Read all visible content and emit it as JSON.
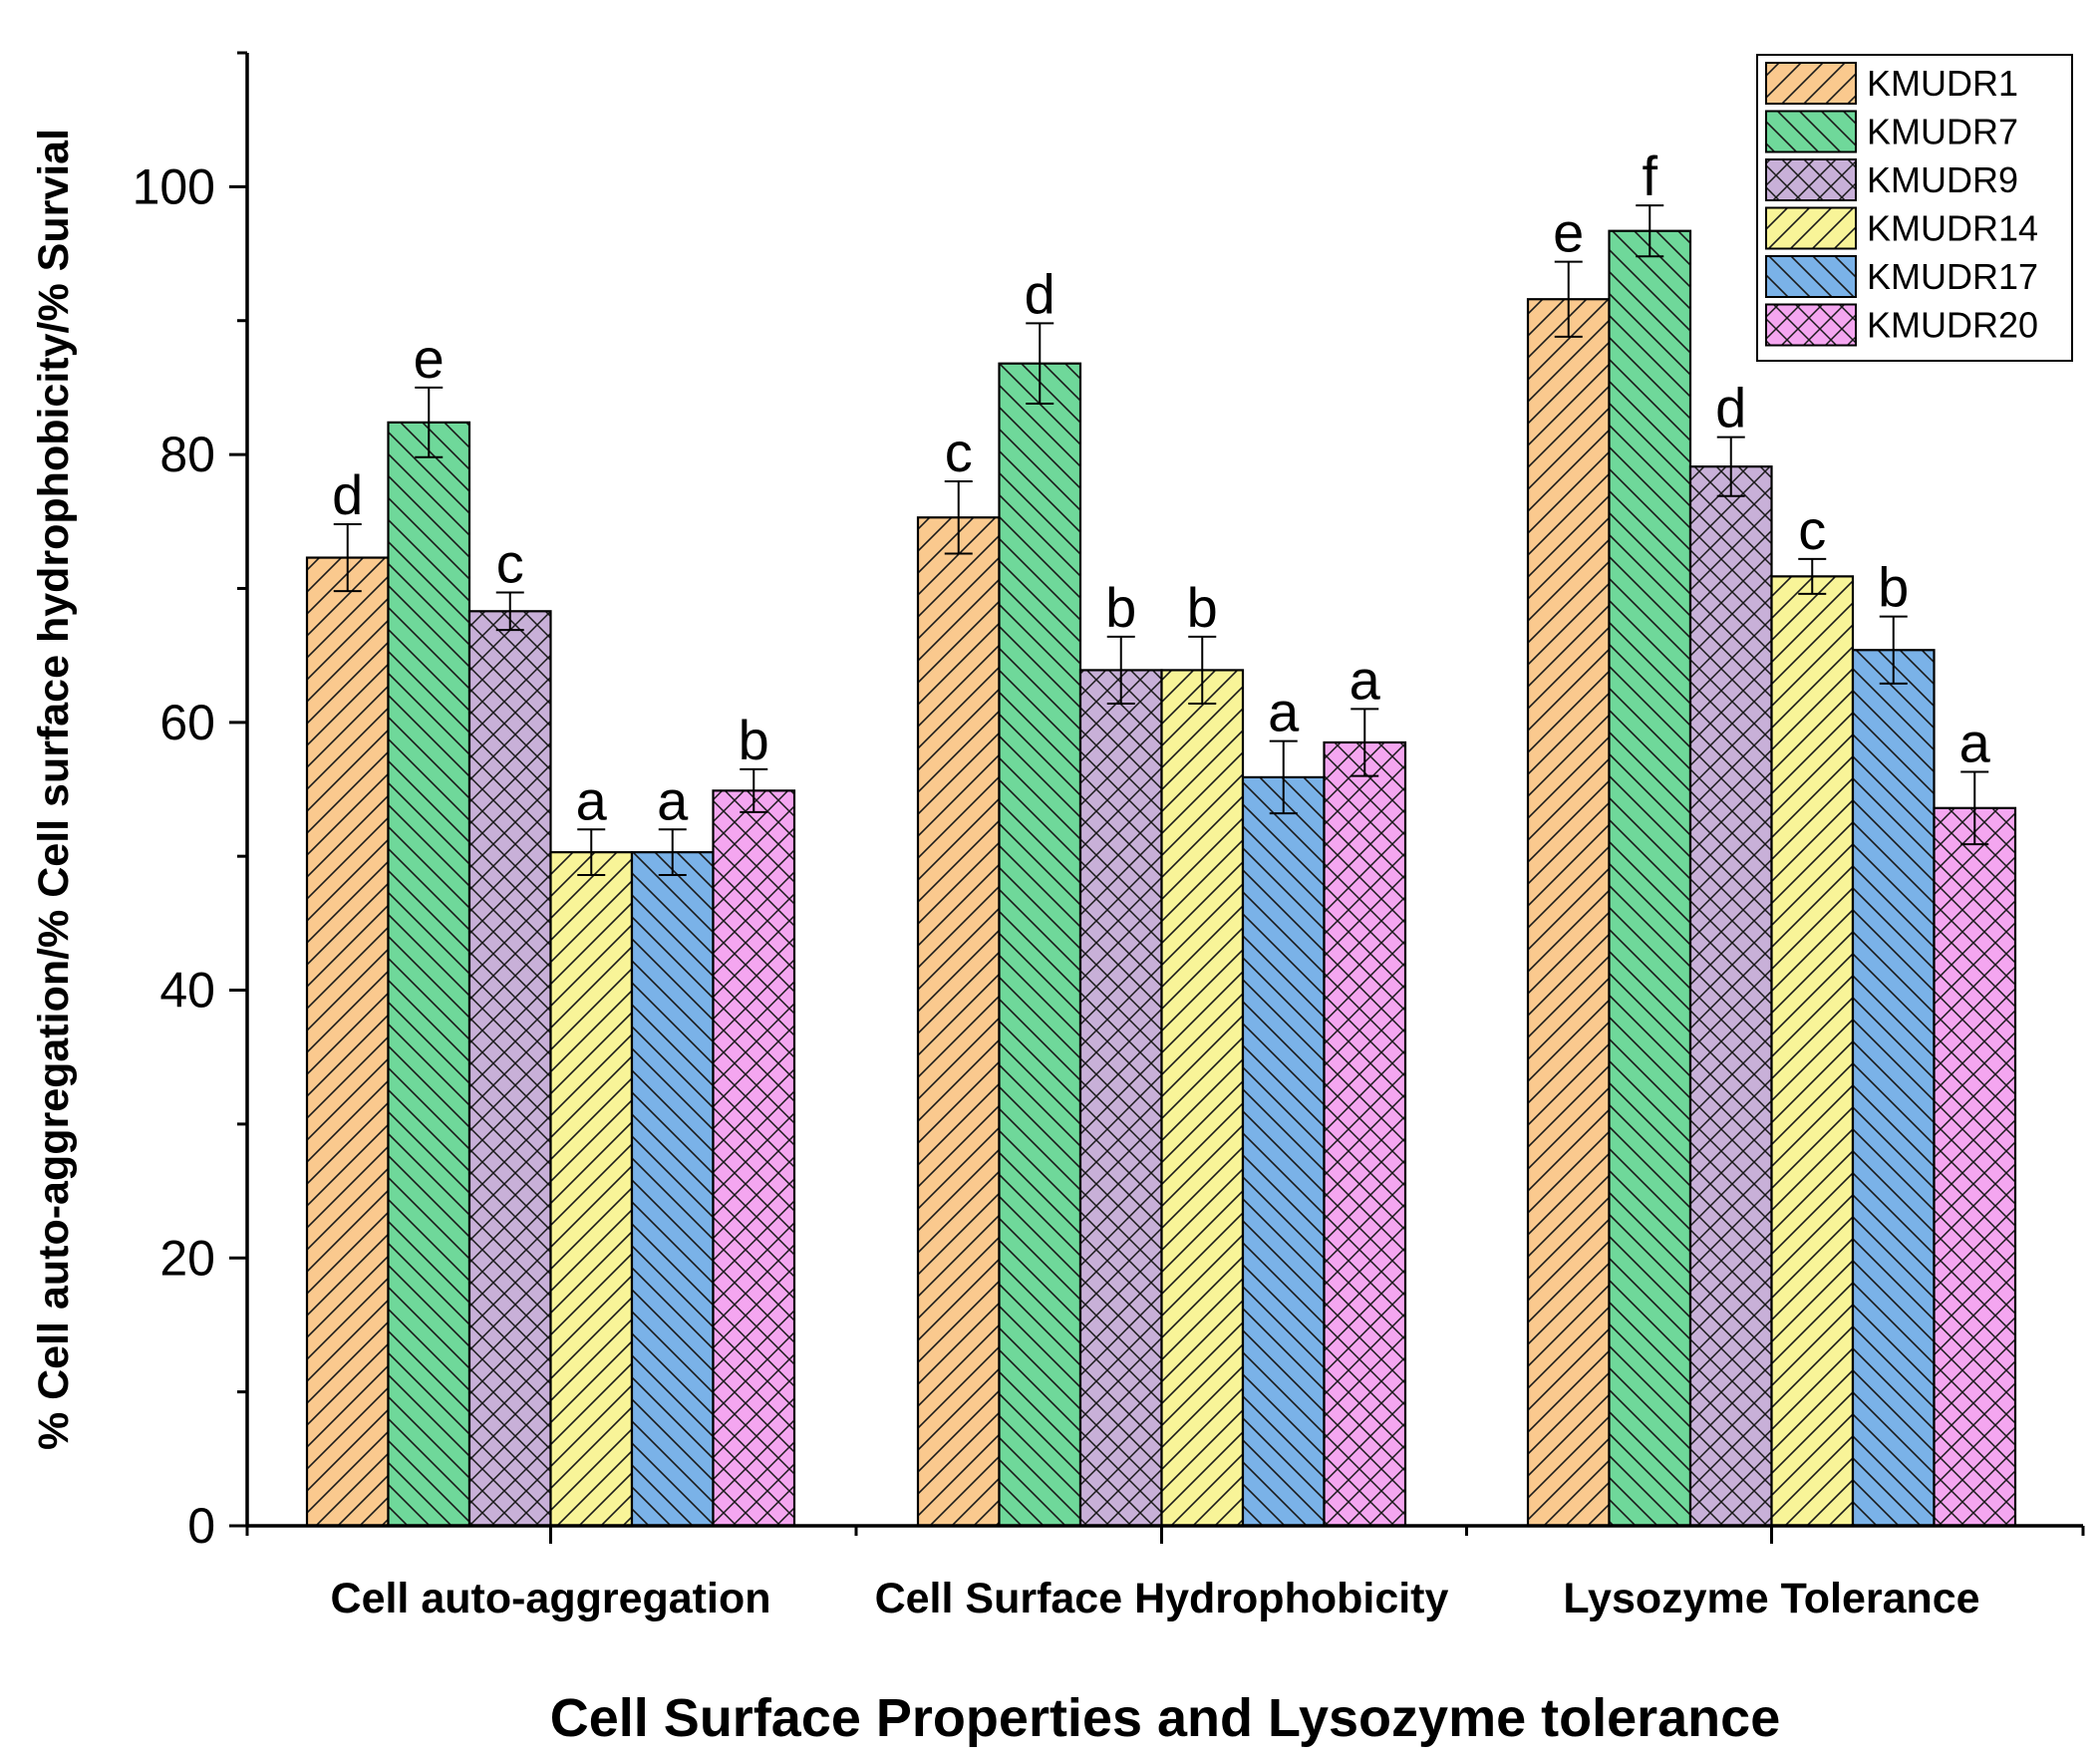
{
  "chart_data": {
    "type": "bar",
    "title": "",
    "xlabel": "Cell Surface Properties and Lysozyme tolerance",
    "ylabel": "% Cell auto-aggregation/% Cell surface hydrophobicity/% Survial",
    "ylim": [
      0,
      110
    ],
    "yticks": [
      "0",
      "20",
      "40",
      "60",
      "80",
      "100"
    ],
    "grid": false,
    "legend_position": "top-right",
    "categories": [
      "Cell auto-aggregation",
      "Cell Surface Hydrophobicity",
      "Lysozyme Tolerance"
    ],
    "series": [
      {
        "name": "KMUDR1",
        "color": "#FAC98E",
        "pattern": "forward-diagonal",
        "values": [
          72.3,
          75.3,
          91.6
        ],
        "errors": [
          2.5,
          2.7,
          2.8
        ],
        "letters": [
          "d",
          "c",
          "e"
        ]
      },
      {
        "name": "KMUDR7",
        "color": "#6FD89A",
        "pattern": "back-diagonal",
        "values": [
          82.4,
          86.8,
          96.7
        ],
        "errors": [
          2.6,
          3.0,
          1.9
        ],
        "letters": [
          "e",
          "d",
          "f"
        ]
      },
      {
        "name": "KMUDR9",
        "color": "#C8B0D8",
        "pattern": "crosshatch",
        "values": [
          68.3,
          63.9,
          79.1
        ],
        "errors": [
          1.4,
          2.5,
          2.2
        ],
        "letters": [
          "c",
          "b",
          "d"
        ]
      },
      {
        "name": "KMUDR14",
        "color": "#F8F498",
        "pattern": "forward-diagonal",
        "values": [
          50.3,
          63.9,
          70.9
        ],
        "errors": [
          1.7,
          2.5,
          1.3
        ],
        "letters": [
          "a",
          "b",
          "c"
        ]
      },
      {
        "name": "KMUDR17",
        "color": "#7AB2E8",
        "pattern": "back-diagonal",
        "values": [
          50.3,
          55.9,
          65.4
        ],
        "errors": [
          1.7,
          2.7,
          2.5
        ],
        "letters": [
          "a",
          "a",
          "b"
        ]
      },
      {
        "name": "KMUDR20",
        "color": "#F4A6F0",
        "pattern": "crosshatch",
        "values": [
          54.9,
          58.5,
          53.6
        ],
        "errors": [
          1.6,
          2.5,
          2.7
        ],
        "letters": [
          "b",
          "a",
          "a"
        ]
      }
    ]
  }
}
